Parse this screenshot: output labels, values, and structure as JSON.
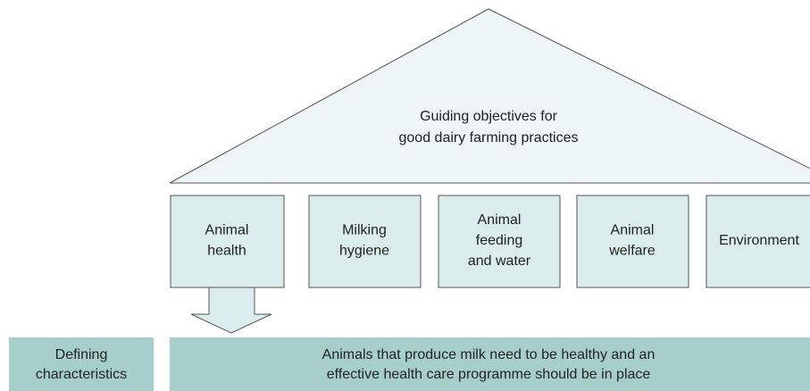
{
  "roof": {
    "lines": [
      "Guiding objectives for",
      "good dairy farming practices"
    ]
  },
  "pillars": [
    {
      "lines": [
        "Animal",
        "health"
      ]
    },
    {
      "lines": [
        "Milking",
        "hygiene"
      ]
    },
    {
      "lines": [
        "Animal",
        "feeding",
        "and water"
      ]
    },
    {
      "lines": [
        "Animal",
        "welfare"
      ]
    },
    {
      "lines": [
        "Environment"
      ]
    }
  ],
  "side_label": {
    "lines": [
      "Defining",
      "characteristics"
    ]
  },
  "description": {
    "lines": [
      "Animals that produce milk need to be healthy and an",
      "effective health care programme should be in place"
    ]
  }
}
